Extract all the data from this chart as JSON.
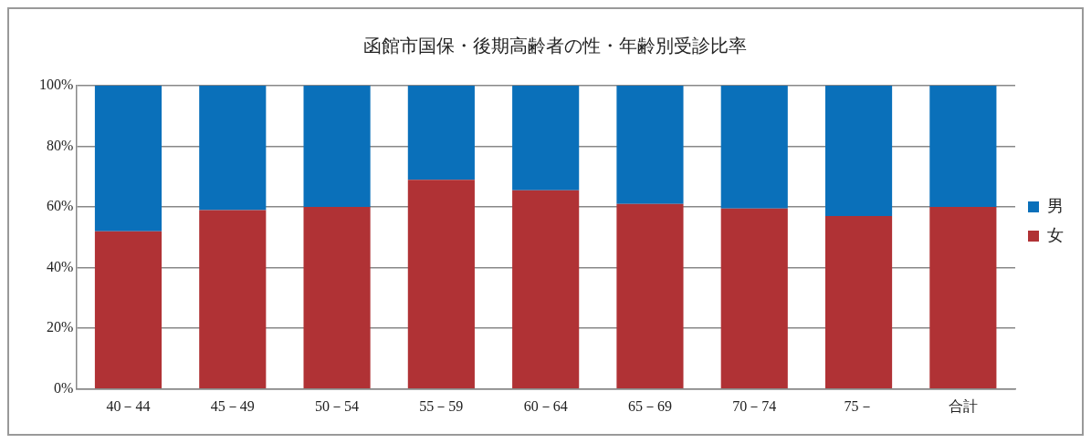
{
  "chart_data": {
    "type": "bar",
    "title": "函館市国保・後期高齢者の性・年齢別受診比率",
    "categories": [
      "40－44",
      "45－49",
      "50－54",
      "55－59",
      "60－64",
      "65－69",
      "70－74",
      "75－",
      "合計"
    ],
    "stacked": true,
    "series": [
      {
        "name": "女",
        "color": "#b03235",
        "values": [
          52,
          59,
          60,
          69,
          65.5,
          61,
          59.5,
          57,
          60
        ]
      },
      {
        "name": "男",
        "color": "#0a70ba",
        "values": [
          48,
          41,
          40,
          31,
          34.5,
          39,
          40.5,
          43,
          40
        ]
      }
    ],
    "ylim": [
      0,
      100
    ],
    "yticks": [
      {
        "value": 0,
        "label": "0%"
      },
      {
        "value": 20,
        "label": "20%"
      },
      {
        "value": 40,
        "label": "40%"
      },
      {
        "value": 60,
        "label": "60%"
      },
      {
        "value": 80,
        "label": "80%"
      },
      {
        "value": 100,
        "label": "100%"
      }
    ],
    "grid": "y",
    "legend": "right"
  }
}
